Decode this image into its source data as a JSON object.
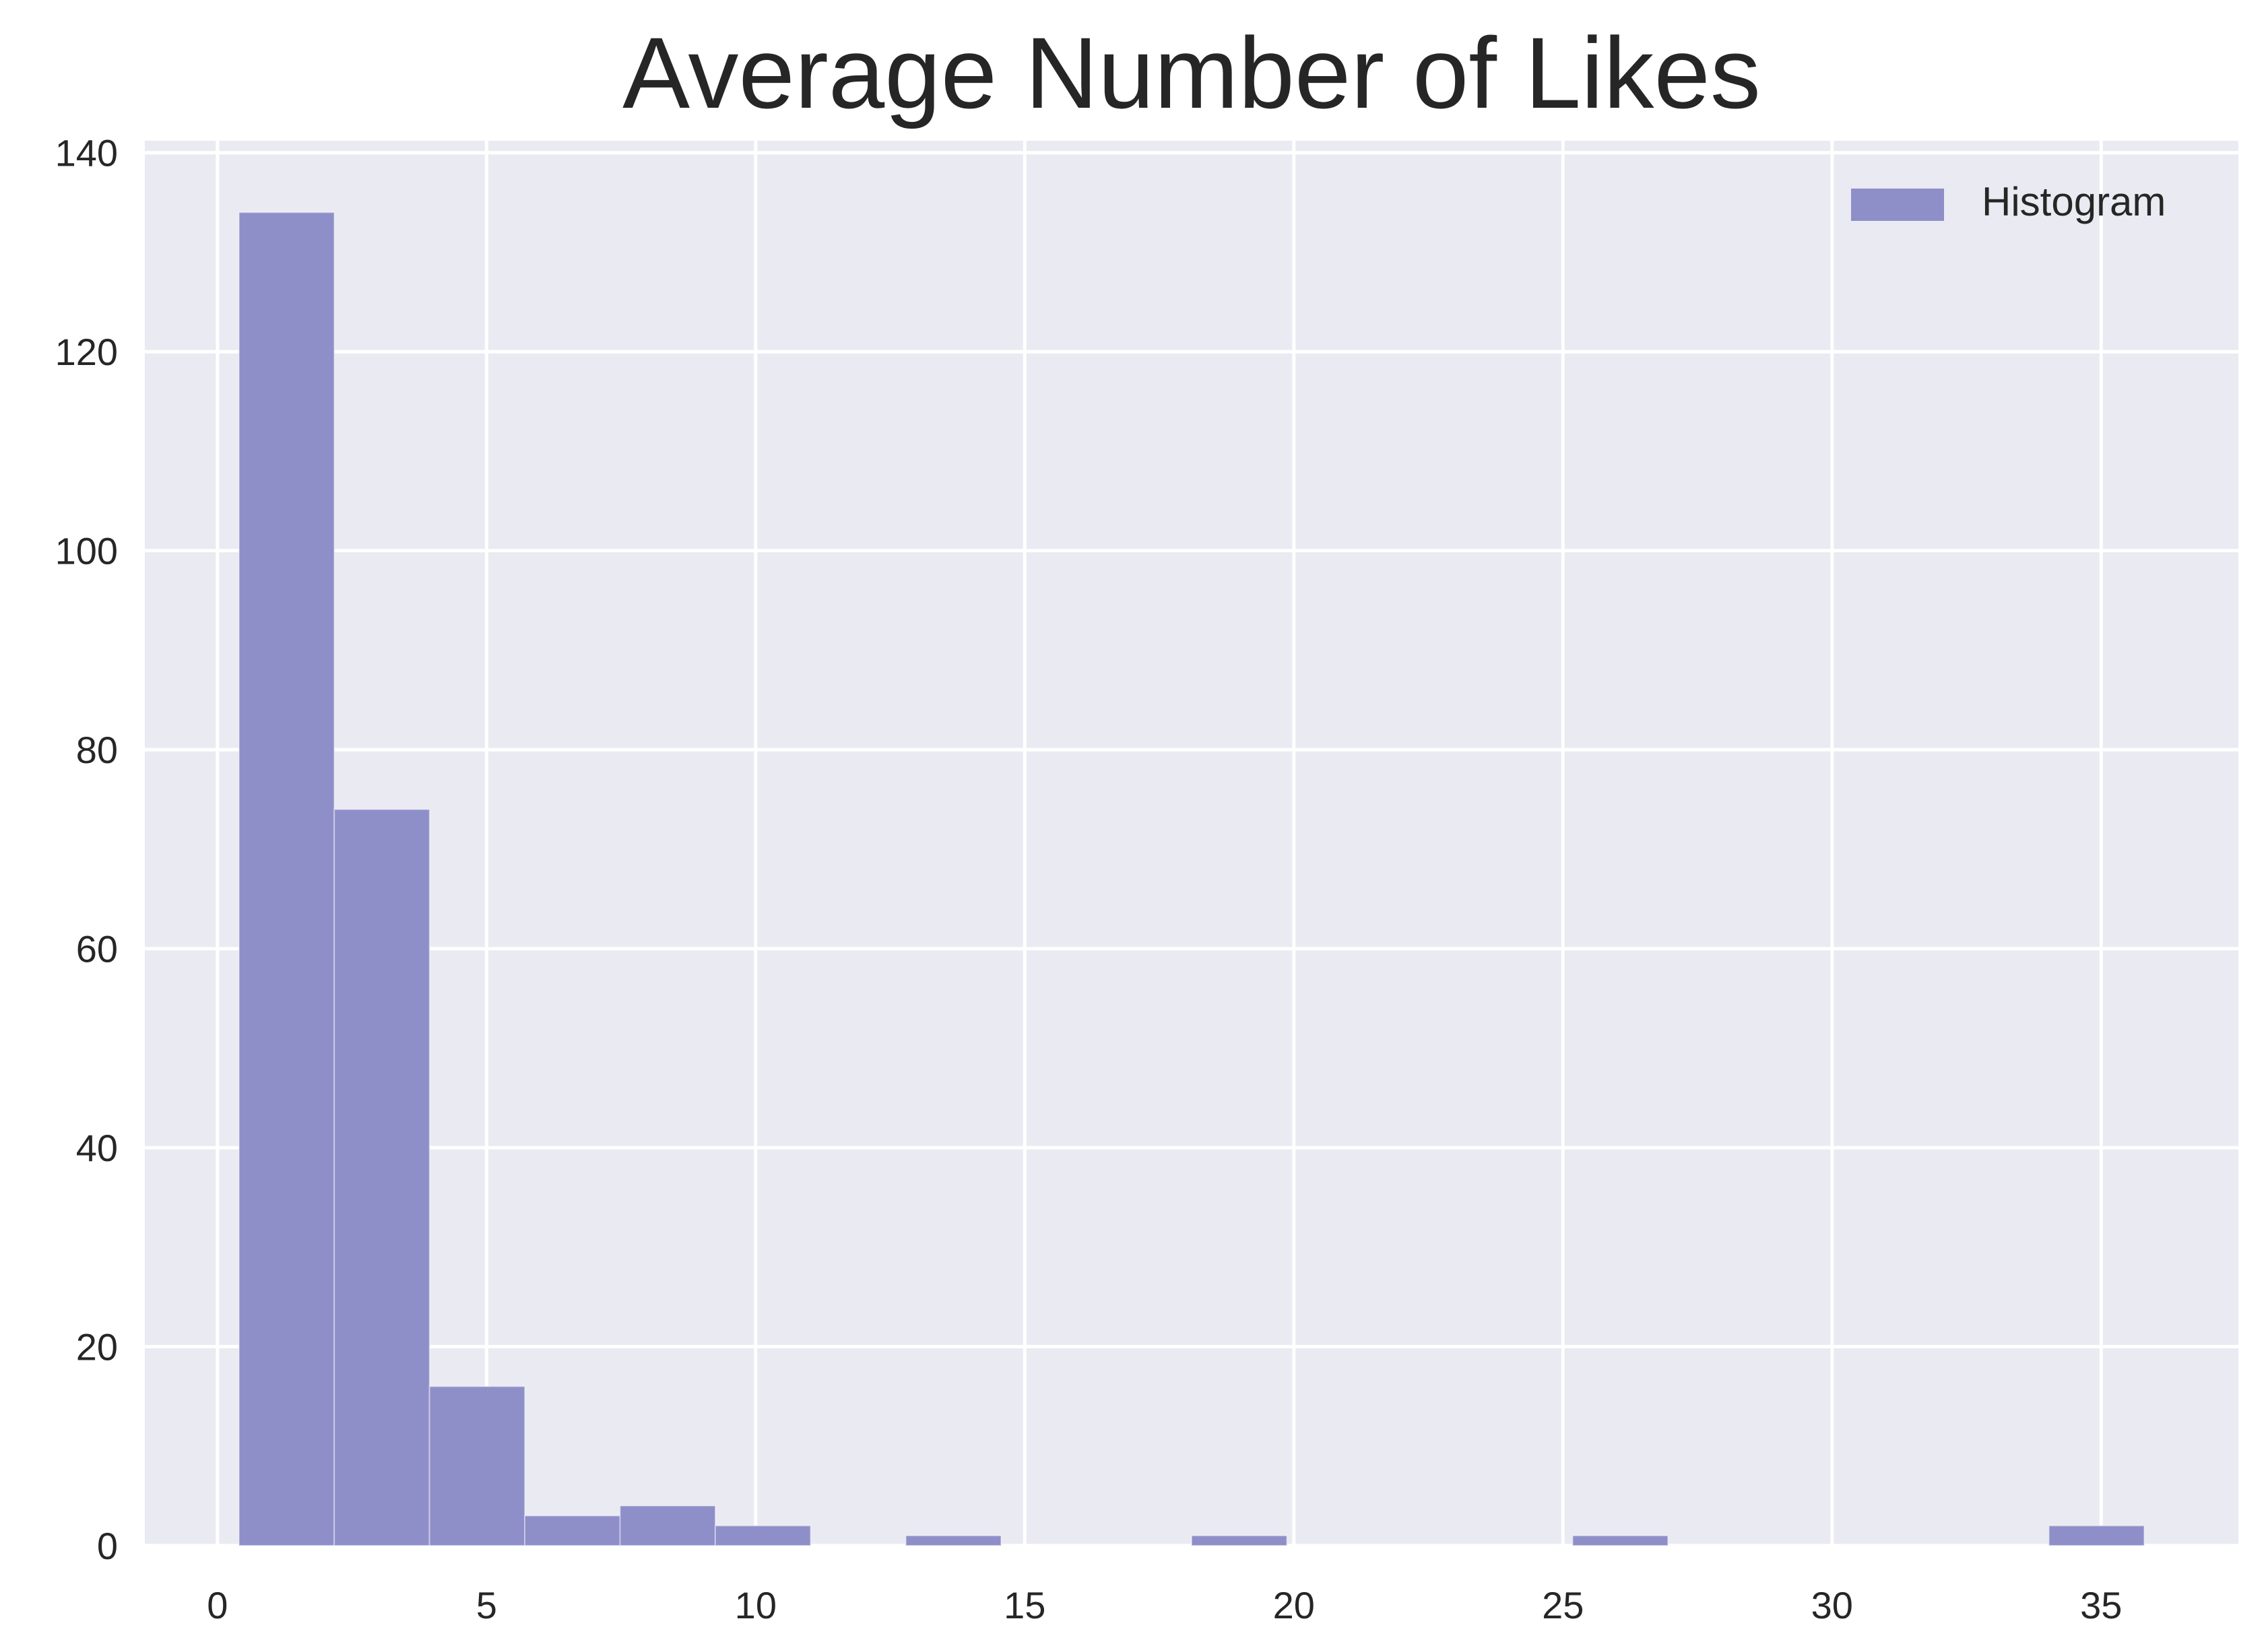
{
  "chart_data": {
    "type": "bar",
    "title": "Average Number of Likes",
    "xlabel": "",
    "ylabel": "",
    "bin_edges": [
      0.4,
      2.17,
      3.94,
      5.71,
      7.48,
      9.25,
      11.02,
      12.79,
      14.56,
      16.33,
      18.1,
      19.87,
      21.64,
      23.41,
      25.18,
      26.95,
      28.72,
      30.49,
      32.26,
      34.03,
      35.8
    ],
    "values": [
      134,
      74,
      16,
      3,
      4,
      2,
      0,
      1,
      0,
      0,
      1,
      0,
      0,
      0,
      1,
      0,
      0,
      0,
      0,
      2
    ],
    "xlim": [
      -1.35,
      37.55
    ],
    "ylim": [
      0,
      141.2
    ],
    "xticks": [
      0,
      5,
      10,
      15,
      20,
      25,
      30,
      35
    ],
    "xtick_labels": [
      "0",
      "5",
      "10",
      "15",
      "20",
      "25",
      "30",
      "35"
    ],
    "yticks": [
      0,
      20,
      40,
      60,
      80,
      100,
      120,
      140
    ],
    "ytick_labels": [
      "0",
      "20",
      "40",
      "60",
      "80",
      "100",
      "120",
      "140"
    ],
    "grid": true,
    "legend": {
      "position": "top-right",
      "entries": [
        "Histogram"
      ]
    },
    "colors": {
      "bar": "#8e8ec9",
      "background": "#eaeaf2",
      "grid": "#ffffff",
      "text": "#262626"
    }
  }
}
